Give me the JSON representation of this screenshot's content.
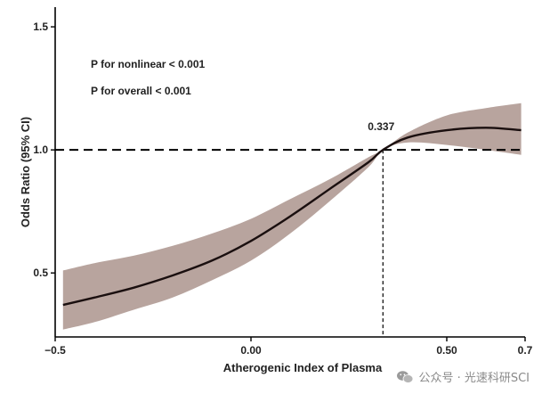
{
  "chart_data": {
    "type": "line",
    "title": "",
    "xlabel": "Atherogenic Index of Plasma",
    "ylabel": "Odds Ratio (95% CI)",
    "xlim": [
      -0.5,
      0.7
    ],
    "ylim": [
      0.24,
      1.58
    ],
    "x_ticks": [
      -0.5,
      0.0,
      0.5,
      0.7
    ],
    "x_tick_labels": [
      "−0.5",
      "0.00",
      "0.50",
      "0.7"
    ],
    "y_ticks": [
      0.5,
      1.0,
      1.5
    ],
    "y_tick_labels": [
      "0.5",
      "1.0",
      "1.5"
    ],
    "reference_y": 1.0,
    "knot_x": 0.337,
    "knot_label": "0.337",
    "annotations": [
      "P for nonlinear < 0.001",
      "P for overall < 0.001"
    ],
    "series": [
      {
        "name": "Odds Ratio",
        "color": "#1a0f0f",
        "x": [
          -0.48,
          -0.4,
          -0.3,
          -0.2,
          -0.1,
          0.0,
          0.1,
          0.2,
          0.3,
          0.337,
          0.4,
          0.5,
          0.6,
          0.69
        ],
        "y": [
          0.37,
          0.4,
          0.44,
          0.49,
          0.55,
          0.63,
          0.73,
          0.84,
          0.95,
          1.0,
          1.05,
          1.08,
          1.09,
          1.08
        ],
        "lower": [
          0.27,
          0.3,
          0.35,
          0.4,
          0.47,
          0.55,
          0.66,
          0.79,
          0.93,
          1.0,
          1.03,
          1.02,
          1.0,
          0.98
        ],
        "upper": [
          0.51,
          0.54,
          0.57,
          0.61,
          0.66,
          0.72,
          0.8,
          0.88,
          0.97,
          1.0,
          1.07,
          1.14,
          1.17,
          1.19
        ]
      }
    ],
    "ci_color": "#b8a49e",
    "grid": false
  },
  "watermark": {
    "text": "公众号 · 光速科研SCI",
    "icon": "wechat-icon"
  }
}
